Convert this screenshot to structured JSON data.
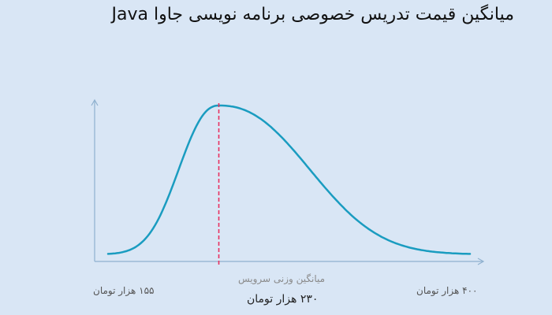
{
  "title": "میانگین قیمت تدریس خصوصی برنامه نویسی جاوا Java",
  "colors": {
    "background": "#d9e6f5",
    "curve": "#1a9cc0",
    "mean_line": "#e8305f",
    "axis": "#8fb1cf"
  },
  "chart_data": {
    "type": "line",
    "title": "میانگین قیمت تدریس خصوصی برنامه نویسی جاوا Java",
    "xlabel": "",
    "ylabel": "",
    "grid": false,
    "x_min_label": "۱۵۵ هزار تومان",
    "x_max_label": "۴۰۰ هزار تومان",
    "mean_caption": "میانگین وزنی سرویس",
    "mean_label": "۲۳۰ هزار تومان",
    "x_min": 155,
    "x_max": 400,
    "mean": 230,
    "x_unit": "هزار تومان"
  }
}
